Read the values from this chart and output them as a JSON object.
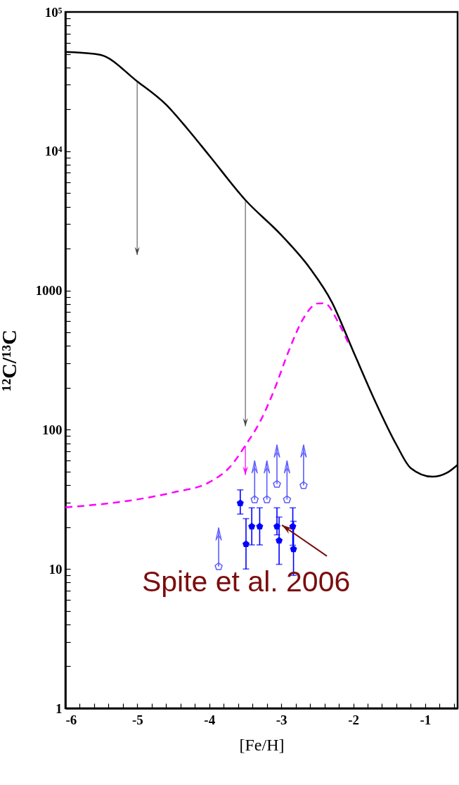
{
  "chart_data": {
    "type": "line",
    "xlabel": "[Fe/H]",
    "ylabel": "¹²C/¹³C",
    "xlim": [
      -6,
      -0.55
    ],
    "ylim": [
      1,
      100000
    ],
    "log": "y",
    "grid": false,
    "xticks": [
      -6,
      {
        "value": -5.8,
        "label": null
      },
      {
        "value": -5.6,
        "label": null
      },
      {
        "value": -5.4,
        "label": null
      },
      {
        "value": -5.2,
        "label": null
      },
      -5,
      {
        "value": -4.8,
        "label": null
      },
      {
        "value": -4.6,
        "label": null
      },
      {
        "value": -4.4,
        "label": null
      },
      {
        "value": -4.2,
        "label": null
      },
      -4,
      {
        "value": -3.8,
        "label": null
      },
      {
        "value": -3.6,
        "label": null
      },
      {
        "value": -3.4,
        "label": null
      },
      {
        "value": -3.2,
        "label": null
      },
      -3,
      {
        "value": -2.8,
        "label": null
      },
      {
        "value": -2.6,
        "label": null
      },
      {
        "value": -2.4,
        "label": null
      },
      {
        "value": -2.2,
        "label": null
      },
      -2,
      {
        "value": -1.8,
        "label": null
      },
      {
        "value": -1.6,
        "label": null
      },
      {
        "value": -1.4,
        "label": null
      },
      {
        "value": -1.2,
        "label": null
      },
      -1,
      {
        "value": -0.8,
        "label": null
      },
      {
        "value": -0.6,
        "label": null
      }
    ],
    "yticks": [
      1,
      {
        "value": 2,
        "label": null
      },
      {
        "value": 3,
        "label": null
      },
      {
        "value": 4,
        "label": null
      },
      {
        "value": 5,
        "label": null
      },
      {
        "value": 6,
        "label": null
      },
      {
        "value": 7,
        "label": null
      },
      {
        "value": 8,
        "label": null
      },
      {
        "value": 9,
        "label": null
      },
      10,
      {
        "value": 20,
        "label": null
      },
      {
        "value": 30,
        "label": null
      },
      {
        "value": 40,
        "label": null
      },
      {
        "value": 50,
        "label": null
      },
      {
        "value": 60,
        "label": null
      },
      {
        "value": 70,
        "label": null
      },
      {
        "value": 80,
        "label": null
      },
      {
        "value": 90,
        "label": null
      },
      100,
      {
        "value": 200,
        "label": null
      },
      {
        "value": 300,
        "label": null
      },
      {
        "value": 400,
        "label": null
      },
      {
        "value": 500,
        "label": null
      },
      {
        "value": 600,
        "label": null
      },
      {
        "value": 700,
        "label": null
      },
      {
        "value": 800,
        "label": null
      },
      {
        "value": 900,
        "label": null
      },
      1000,
      {
        "value": 2000,
        "label": null
      },
      {
        "value": 3000,
        "label": null
      },
      {
        "value": 4000,
        "label": null
      },
      {
        "value": 5000,
        "label": null
      },
      {
        "value": 6000,
        "label": null
      },
      {
        "value": 7000,
        "label": null
      },
      {
        "value": 8000,
        "label": null
      },
      {
        "value": 9000,
        "label": null
      },
      {
        "value": 10000,
        "label": "10⁴"
      },
      {
        "value": 20000,
        "label": null
      },
      {
        "value": 30000,
        "label": null
      },
      {
        "value": 40000,
        "label": null
      },
      {
        "value": 50000,
        "label": null
      },
      {
        "value": 60000,
        "label": null
      },
      {
        "value": 70000,
        "label": null
      },
      {
        "value": 80000,
        "label": null
      },
      {
        "value": 90000,
        "label": null
      },
      {
        "value": 100000,
        "label": "10⁵"
      }
    ],
    "series": [
      {
        "type": "line",
        "color": "#000000",
        "line_style": "solid",
        "x": [
          -6,
          -5.6,
          -5.5,
          -5,
          -4.6,
          -4.3,
          -4,
          -3.5,
          -3,
          -2.6,
          -2.3,
          -2,
          -1.7,
          -1.4,
          -1.2,
          -0.9,
          -0.7,
          -0.55
        ],
        "values": [
          51700,
          50000,
          49000,
          31700,
          21600,
          14400,
          9300,
          4470,
          2500,
          1440,
          830,
          366,
          162,
          78,
          53,
          46,
          49,
          56
        ]
      },
      {
        "type": "line",
        "color": "#ff00ff",
        "line_style": "dashed",
        "x": [
          -6,
          -5,
          -4.5,
          -4,
          -3.7,
          -3.5,
          -3.3,
          -3.1,
          -2.9,
          -2.7,
          -2.5,
          -2.4,
          -2.2,
          -2.05
        ],
        "values": [
          27.7,
          31.6,
          35.5,
          42,
          55,
          77,
          113,
          192,
          364,
          620,
          806,
          810,
          580,
          400
        ]
      },
      {
        "type": "scatter",
        "color": "#0000ff",
        "x": [
          -3.57,
          -3.49,
          -3.41,
          -3.3,
          -3.06,
          -3.03,
          -2.84,
          -2.83
        ],
        "values": [
          29.7,
          15.1,
          20.2,
          20.2,
          20.2,
          16,
          20.2,
          13.9
        ],
        "errors": [
          [
            24.8,
            37
          ],
          [
            10,
            23
          ],
          [
            14.9,
            27.5
          ],
          [
            14.9,
            27.5
          ],
          [
            17.6,
            27.5
          ],
          [
            10.8,
            23.6
          ],
          [
            14.8,
            27.5
          ],
          [
            9,
            22
          ]
        ]
      },
      {
        "type": "scatter",
        "color": "#5c5cff",
        "x": [
          -3.87,
          -3.37,
          -3.2,
          -3.06,
          -2.92,
          -2.69
        ],
        "values": [
          10.4,
          31.5,
          31.5,
          40.6,
          31.5,
          39.8
        ],
        "errors": [
          [
            10.4,
            19.8
          ],
          [
            31.5,
            60
          ],
          [
            31.5,
            60
          ],
          [
            40.6,
            78
          ],
          [
            31.5,
            60
          ],
          [
            39.8,
            78
          ]
        ]
      }
    ],
    "annotations": [
      {
        "text": "Spite et al. 2006",
        "x": -3.03,
        "y": 20.2
      }
    ]
  }
}
